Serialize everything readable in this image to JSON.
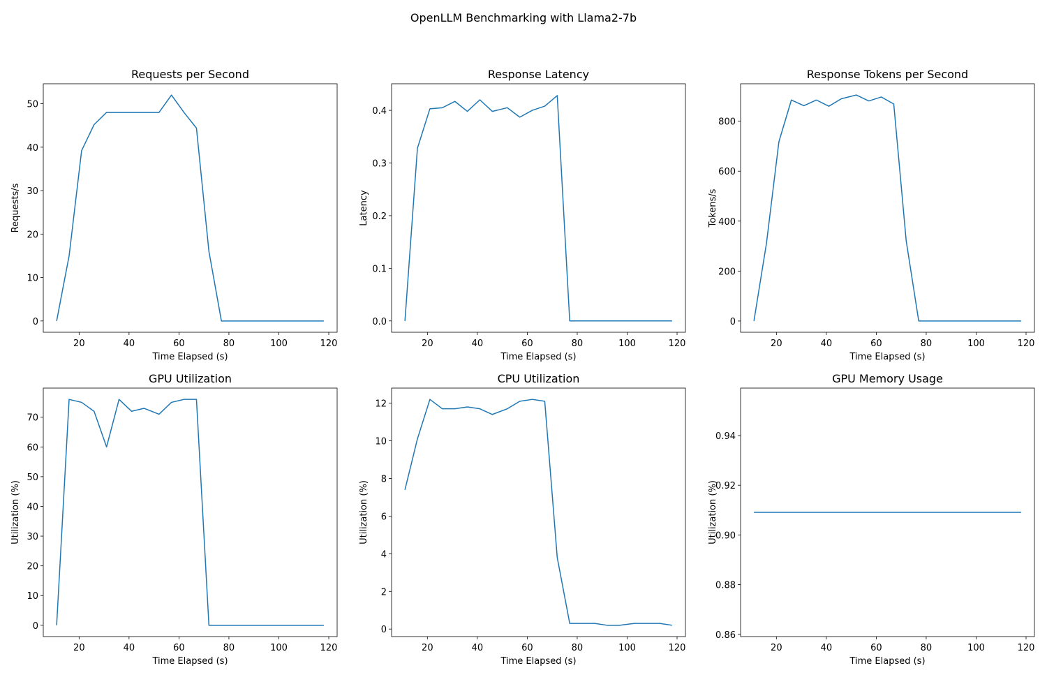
{
  "figure": {
    "suptitle": "OpenLLM Benchmarking with Llama2-7b",
    "line_color": "#1f77b4"
  },
  "chart_data": [
    {
      "type": "line",
      "title": "Requests per Second",
      "xlabel": "Time Elapsed (s)",
      "ylabel": "Requests/s",
      "xlim": [
        5.65,
        123.35
      ],
      "ylim": [
        -2.6,
        54.6
      ],
      "xticks": [
        20,
        40,
        60,
        80,
        100,
        120
      ],
      "xtick_labels": [
        "20",
        "40",
        "60",
        "80",
        "100",
        "120"
      ],
      "yticks": [
        0,
        10,
        20,
        30,
        40,
        50
      ],
      "ytick_labels": [
        "0",
        "10",
        "20",
        "30",
        "40",
        "50"
      ],
      "grid": false,
      "x": [
        11,
        16,
        21,
        26,
        31,
        36,
        41,
        46,
        52,
        57,
        62,
        67,
        72,
        77,
        82,
        87,
        92,
        97,
        103,
        108,
        113,
        118
      ],
      "y": [
        0,
        15,
        39.2,
        45.2,
        48,
        48,
        48,
        48,
        48,
        52,
        48,
        44.4,
        16,
        0,
        0,
        0,
        0,
        0,
        0,
        0,
        0,
        0
      ]
    },
    {
      "type": "line",
      "title": "Response Latency",
      "xlabel": "Time Elapsed (s)",
      "ylabel": "Latency",
      "xlim": [
        5.65,
        123.35
      ],
      "ylim": [
        -0.0215,
        0.4505
      ],
      "xticks": [
        20,
        40,
        60,
        80,
        100,
        120
      ],
      "xtick_labels": [
        "20",
        "40",
        "60",
        "80",
        "100",
        "120"
      ],
      "yticks": [
        0.0,
        0.1,
        0.2,
        0.3,
        0.4
      ],
      "ytick_labels": [
        "0.0",
        "0.1",
        "0.2",
        "0.3",
        "0.4"
      ],
      "grid": false,
      "x": [
        11,
        16,
        21,
        26,
        31,
        36,
        41,
        46,
        52,
        57,
        62,
        67,
        72,
        77,
        82,
        87,
        92,
        97,
        103,
        108,
        113,
        118
      ],
      "y": [
        0,
        0.328,
        0.403,
        0.405,
        0.417,
        0.398,
        0.42,
        0.398,
        0.405,
        0.387,
        0.4,
        0.408,
        0.428,
        0,
        0,
        0,
        0,
        0,
        0,
        0,
        0,
        0
      ]
    },
    {
      "type": "line",
      "title": "Response Tokens per Second",
      "xlabel": "Time Elapsed (s)",
      "ylabel": "Tokens/s",
      "xlim": [
        5.65,
        123.35
      ],
      "ylim": [
        -45,
        950
      ],
      "xticks": [
        20,
        40,
        60,
        80,
        100,
        120
      ],
      "xtick_labels": [
        "20",
        "40",
        "60",
        "80",
        "100",
        "120"
      ],
      "yticks": [
        0,
        200,
        400,
        600,
        800
      ],
      "ytick_labels": [
        "0",
        "200",
        "400",
        "600",
        "800"
      ],
      "grid": false,
      "x": [
        11,
        16,
        21,
        26,
        31,
        36,
        41,
        46,
        52,
        57,
        62,
        67,
        72,
        77,
        82,
        87,
        92,
        97,
        103,
        108,
        113,
        118
      ],
      "y": [
        0,
        310,
        718,
        885,
        862,
        885,
        860,
        890,
        905,
        881,
        897,
        869,
        320,
        0,
        0,
        0,
        0,
        0,
        0,
        0,
        0,
        0
      ]
    },
    {
      "type": "line",
      "title": "GPU Utilization",
      "xlabel": "Time Elapsed (s)",
      "ylabel": "Utilization (%)",
      "xlim": [
        5.65,
        123.35
      ],
      "ylim": [
        -3.8,
        79.8
      ],
      "xticks": [
        20,
        40,
        60,
        80,
        100,
        120
      ],
      "xtick_labels": [
        "20",
        "40",
        "60",
        "80",
        "100",
        "120"
      ],
      "yticks": [
        0,
        10,
        20,
        30,
        40,
        50,
        60,
        70
      ],
      "ytick_labels": [
        "0",
        "10",
        "20",
        "30",
        "40",
        "50",
        "60",
        "70"
      ],
      "grid": false,
      "x": [
        11,
        16,
        21,
        26,
        31,
        36,
        41,
        46,
        52,
        57,
        62,
        67,
        72,
        77,
        82,
        87,
        92,
        97,
        103,
        108,
        113,
        118
      ],
      "y": [
        0,
        76,
        75,
        72,
        60,
        76,
        72,
        73,
        71,
        75,
        76,
        76,
        0,
        0,
        0,
        0,
        0,
        0,
        0,
        0,
        0,
        0
      ]
    },
    {
      "type": "line",
      "title": "CPU Utilization",
      "xlabel": "Time Elapsed (s)",
      "ylabel": "Utilization (%)",
      "xlim": [
        5.65,
        123.35
      ],
      "ylim": [
        -0.4,
        12.8
      ],
      "xticks": [
        20,
        40,
        60,
        80,
        100,
        120
      ],
      "xtick_labels": [
        "20",
        "40",
        "60",
        "80",
        "100",
        "120"
      ],
      "yticks": [
        0,
        2,
        4,
        6,
        8,
        10,
        12
      ],
      "ytick_labels": [
        "0",
        "2",
        "4",
        "6",
        "8",
        "10",
        "12"
      ],
      "grid": false,
      "x": [
        11,
        16,
        21,
        26,
        31,
        36,
        41,
        46,
        52,
        57,
        62,
        67,
        72,
        77,
        82,
        87,
        92,
        97,
        103,
        108,
        113,
        118
      ],
      "y": [
        7.4,
        10.1,
        12.2,
        11.7,
        11.7,
        11.8,
        11.7,
        11.4,
        11.7,
        12.1,
        12.2,
        12.1,
        3.8,
        0.3,
        0.3,
        0.3,
        0.2,
        0.2,
        0.3,
        0.3,
        0.3,
        0.2
      ]
    },
    {
      "type": "line",
      "title": "GPU Memory Usage",
      "xlabel": "Time Elapsed (s)",
      "ylabel": "Utilization (%)",
      "xlim": [
        5.65,
        123.35
      ],
      "ylim": [
        0.8591,
        0.9591
      ],
      "xticks": [
        20,
        40,
        60,
        80,
        100,
        120
      ],
      "xtick_labels": [
        "20",
        "40",
        "60",
        "80",
        "100",
        "120"
      ],
      "yticks": [
        0.86,
        0.88,
        0.9,
        0.92,
        0.94
      ],
      "ytick_labels": [
        "0.86",
        "0.88",
        "0.90",
        "0.92",
        "0.94"
      ],
      "grid": false,
      "x": [
        11,
        118
      ],
      "y": [
        0.9091,
        0.9091
      ]
    }
  ]
}
